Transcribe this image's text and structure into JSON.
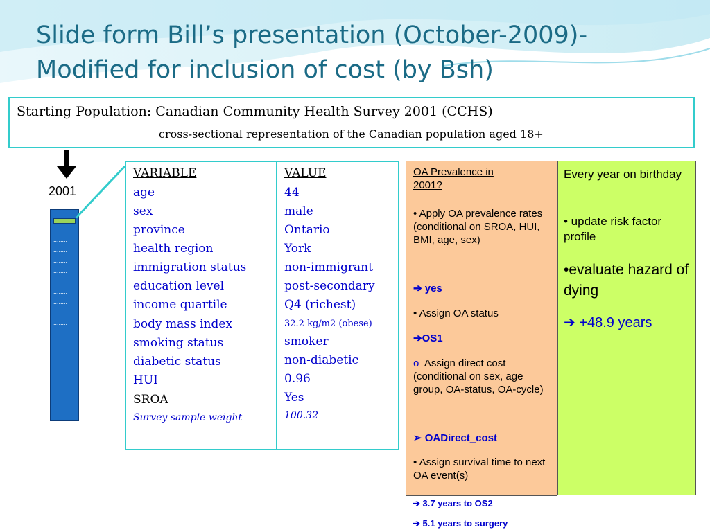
{
  "slide": {
    "title_line1": "Slide form Bill’s presentation (October-2009)-",
    "title_line2": "Modified for inclusion of cost (by Bsh)"
  },
  "population": {
    "line1": "Starting Population:  Canadian Community Health Survey 2001 (CCHS)",
    "line2": "cross-sectional representation of the Canadian population aged 18+"
  },
  "timeline": {
    "year": "2001",
    "dots": "........"
  },
  "variables": {
    "header": "VARIABLE",
    "items": [
      "age",
      "sex",
      "province",
      "health region",
      "immigration status",
      "education level",
      "income quartile",
      "body mass index",
      "smoking status",
      "diabetic status",
      "HUI",
      "SROA",
      "Survey sample weight"
    ]
  },
  "values": {
    "header": "VALUE",
    "items": [
      "44",
      "male",
      "Ontario",
      "York",
      "non-immigrant",
      "post-secondary",
      "Q4 (richest)",
      "32.2 kg/m2 (obese)",
      "smoker",
      "non-diabetic",
      "0.96",
      "Yes",
      "100.32"
    ]
  },
  "oa_panel": {
    "heading_line1": "OA Prevalence in",
    "heading_line2": "2001?",
    "apply_text": "• Apply OA prevalence rates (conditional on SROA, HUI, BMI, age, sex)",
    "arrow_yes": "➔ yes",
    "assign_status": "• Assign OA status",
    "arrow_os1": "➔OS1",
    "direct_cost_marker": "o",
    "direct_cost_text": "Assign direct cost (conditional on sex, age group, OA-status, OA-cycle)",
    "arrow_direct_cost": "➢ OADirect_cost",
    "survival_text": "• Assign survival time to next OA event(s)",
    "result_os2": "➔ 3.7 years to OS2",
    "result_surgery": "➔ 5.1 years to surgery"
  },
  "yearly_panel": {
    "line1": "Every year on birthday",
    "line2": "• update risk factor profile",
    "line3": "•evaluate hazard of dying",
    "line4": "➔  +48.9 years"
  },
  "colors": {
    "title": "#1b6b86",
    "frame": "#33cccc",
    "oa_bg": "#fcc99a",
    "green_bg": "#ccff66",
    "value_blue": "#0000cc",
    "bar_blue": "#1e6fc4"
  }
}
